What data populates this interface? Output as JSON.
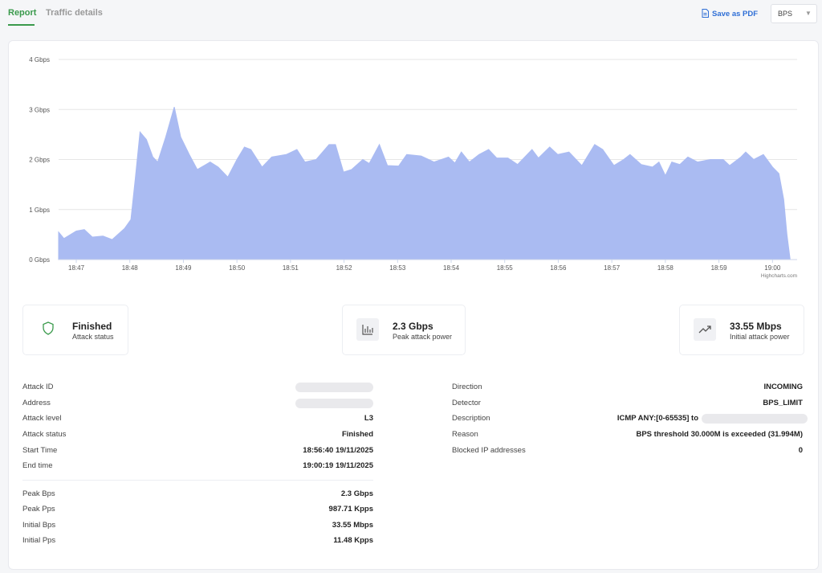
{
  "tabs": [
    "Report",
    "Traffic details"
  ],
  "actions": {
    "save": "Save as PDF",
    "unit_select": "BPS"
  },
  "chart_data": {
    "type": "area",
    "color": "#aabbf2",
    "grid": true,
    "credit": "Highcharts.com",
    "x": [
      46.67,
      46.77,
      47.0,
      47.15,
      47.3,
      47.5,
      47.67,
      47.9,
      48.02,
      48.1,
      48.19,
      48.31,
      48.43,
      48.52,
      48.67,
      48.83,
      48.95,
      49.11,
      49.26,
      49.5,
      49.65,
      49.83,
      50.0,
      50.14,
      50.26,
      50.47,
      50.65,
      50.92,
      51.12,
      51.27,
      51.48,
      51.72,
      51.84,
      51.99,
      52.14,
      52.35,
      52.47,
      52.66,
      52.81,
      53.02,
      53.17,
      53.44,
      53.68,
      53.95,
      54.07,
      54.19,
      54.34,
      54.52,
      54.7,
      54.85,
      55.06,
      55.24,
      55.51,
      55.63,
      55.84,
      55.99,
      56.2,
      56.44,
      56.68,
      56.83,
      57.04,
      57.22,
      57.34,
      57.55,
      57.76,
      57.88,
      58.0,
      58.12,
      58.27,
      58.42,
      58.6,
      58.84,
      59.08,
      59.2,
      59.41,
      59.5,
      59.65,
      59.83,
      60.0,
      60.12,
      60.21,
      60.27,
      60.33
    ],
    "values": [
      0.55,
      0.42,
      0.57,
      0.6,
      0.45,
      0.47,
      0.4,
      0.62,
      0.8,
      1.6,
      2.55,
      2.4,
      2.05,
      1.95,
      2.45,
      3.05,
      2.45,
      2.1,
      1.8,
      1.95,
      1.85,
      1.65,
      2.0,
      2.25,
      2.2,
      1.85,
      2.05,
      2.1,
      2.2,
      1.95,
      2.0,
      2.3,
      2.3,
      1.75,
      1.8,
      2.0,
      1.92,
      2.3,
      1.88,
      1.87,
      2.1,
      2.07,
      1.95,
      2.05,
      1.93,
      2.15,
      1.95,
      2.1,
      2.2,
      2.03,
      2.03,
      1.9,
      2.2,
      2.03,
      2.25,
      2.1,
      2.15,
      1.88,
      2.3,
      2.2,
      1.88,
      2.0,
      2.1,
      1.9,
      1.85,
      1.95,
      1.68,
      1.95,
      1.9,
      2.05,
      1.95,
      2.0,
      2.0,
      1.88,
      2.05,
      2.15,
      2.0,
      2.1,
      1.85,
      1.72,
      1.2,
      0.5,
      0
    ],
    "xlim": [
      46.67,
      60.46
    ],
    "xticks": [
      {
        "value": 47,
        "label": "18:47"
      },
      {
        "value": 48,
        "label": "18:48"
      },
      {
        "value": 49,
        "label": "18:49"
      },
      {
        "value": 50,
        "label": "18:50"
      },
      {
        "value": 51,
        "label": "18:51"
      },
      {
        "value": 52,
        "label": "18:52"
      },
      {
        "value": 53,
        "label": "18:53"
      },
      {
        "value": 54,
        "label": "18:54"
      },
      {
        "value": 55,
        "label": "18:55"
      },
      {
        "value": 56,
        "label": "18:56"
      },
      {
        "value": 57,
        "label": "18:57"
      },
      {
        "value": 58,
        "label": "18:58"
      },
      {
        "value": 59,
        "label": "18:59"
      },
      {
        "value": 60,
        "label": "19:00"
      }
    ],
    "ylim": [
      0,
      4
    ],
    "yticks": [
      {
        "value": 0,
        "label": "0 Gbps"
      },
      {
        "value": 1,
        "label": "1 Gbps"
      },
      {
        "value": 2,
        "label": "2 Gbps"
      },
      {
        "value": 3,
        "label": "3 Gbps"
      },
      {
        "value": 4,
        "label": "4 Gbps"
      }
    ]
  },
  "stats": [
    {
      "value": "Finished",
      "label": "Attack status"
    },
    {
      "value": "2.3 Gbps",
      "label": "Peak attack power"
    },
    {
      "value": "33.55 Mbps",
      "label": "Initial attack power"
    }
  ],
  "details_left": [
    {
      "label": "Attack ID"
    },
    {
      "label": "Address"
    },
    {
      "label": "Attack level",
      "value": "L3"
    },
    {
      "label": "Attack status",
      "value": "Finished"
    },
    {
      "label": "Start Time",
      "value": "18:56:40 19/11/2025"
    },
    {
      "label": "End time",
      "value": "19:00:19 19/11/2025"
    }
  ],
  "details_power": [
    {
      "label": "Peak Bps",
      "value": "2.3 Gbps"
    },
    {
      "label": "Peak Pps",
      "value": "987.71 Kpps"
    },
    {
      "label": "Initial Bps",
      "value": "33.55 Mbps"
    },
    {
      "label": "Initial Pps",
      "value": "11.48 Kpps"
    }
  ],
  "details_right": [
    {
      "label": "Direction",
      "value": "INCOMING"
    },
    {
      "label": "Detector",
      "value": "BPS_LIMIT"
    },
    {
      "label": "Description",
      "value": "ICMP ANY:[0-65535] to"
    },
    {
      "label": "Reason",
      "value": "BPS threshold 30.000M is exceeded (31.994M)"
    },
    {
      "label": "Blocked IP addresses",
      "value": "0"
    }
  ]
}
